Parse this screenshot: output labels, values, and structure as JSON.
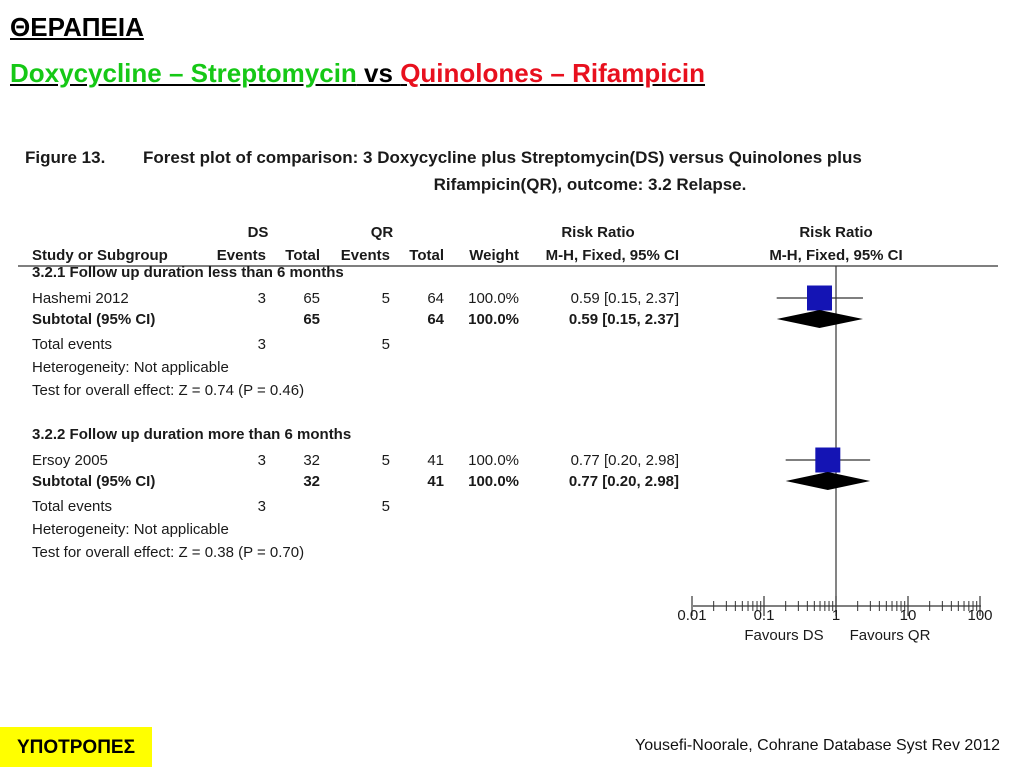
{
  "slide": {
    "title": "ΘΕΡΑΠΕΙΑ",
    "subtitle": {
      "part1": "Doxycycline – Streptomycin",
      "part2": " vs ",
      "part3": "Quinolones – Rifampicin"
    },
    "tag": "ΥΠΟΤΡΟΠΕΣ",
    "citation": "Yousefi-Noorale, Cohrane Database Syst Rev 2012"
  },
  "colors": {
    "green": "#16c816",
    "red": "#e8101e",
    "tag_bg": "#ffff00",
    "marker": "#1414b4"
  },
  "figure": {
    "label": "Figure 13.",
    "caption_line1": "Forest plot of comparison: 3 Doxycycline plus Streptomycin(DS) versus Quinolones plus",
    "caption_line2": "Rifampicin(QR), outcome: 3.2 Relapse."
  },
  "chart_data": {
    "type": "forest",
    "group_headers": {
      "ds": "DS",
      "qr": "QR",
      "rr_table": "Risk Ratio",
      "rr_plot": "Risk Ratio"
    },
    "columns": {
      "study": "Study or Subgroup",
      "ds_events": "Events",
      "ds_total": "Total",
      "qr_events": "Events",
      "qr_total": "Total",
      "weight": "Weight",
      "rr_table": "M-H, Fixed, 95% CI",
      "rr_plot": "M-H, Fixed, 95% CI"
    },
    "x_axis": {
      "scale": "log",
      "ticks": [
        0.01,
        0.1,
        1,
        10,
        100
      ],
      "tick_labels": [
        "0.01",
        "0.1",
        "1",
        "10",
        "100"
      ],
      "favours_left": "Favours DS",
      "favours_right": "Favours QR"
    },
    "subgroups": [
      {
        "header": "3.2.1 Follow up duration less than 6 months",
        "study": {
          "name": "Hashemi 2012",
          "ds_events": "3",
          "ds_total": "65",
          "qr_events": "5",
          "qr_total": "64",
          "weight": "100.0%",
          "rr_text": "0.59 [0.15, 2.37]",
          "rr": 0.59,
          "ci": [
            0.15,
            2.37
          ]
        },
        "subtotal": {
          "name": "Subtotal (95% CI)",
          "ds_total": "65",
          "qr_total": "64",
          "weight": "100.0%",
          "rr_text": "0.59 [0.15, 2.37]",
          "rr": 0.59,
          "ci": [
            0.15,
            2.37
          ]
        },
        "total_events": {
          "label": "Total events",
          "ds": "3",
          "qr": "5"
        },
        "heterogeneity": "Heterogeneity: Not applicable",
        "overall_effect": "Test for overall effect: Z = 0.74 (P = 0.46)"
      },
      {
        "header": "3.2.2 Follow up duration more than 6 months",
        "study": {
          "name": "Ersoy 2005",
          "ds_events": "3",
          "ds_total": "32",
          "qr_events": "5",
          "qr_total": "41",
          "weight": "100.0%",
          "rr_text": "0.77 [0.20, 2.98]",
          "rr": 0.77,
          "ci": [
            0.2,
            2.98
          ]
        },
        "subtotal": {
          "name": "Subtotal (95% CI)",
          "ds_total": "32",
          "qr_total": "41",
          "weight": "100.0%",
          "rr_text": "0.77 [0.20, 2.98]",
          "rr": 0.77,
          "ci": [
            0.2,
            2.98
          ]
        },
        "total_events": {
          "label": "Total events",
          "ds": "3",
          "qr": "5"
        },
        "heterogeneity": "Heterogeneity: Not applicable",
        "overall_effect": "Test for overall effect: Z = 0.38 (P = 0.70)"
      }
    ]
  }
}
